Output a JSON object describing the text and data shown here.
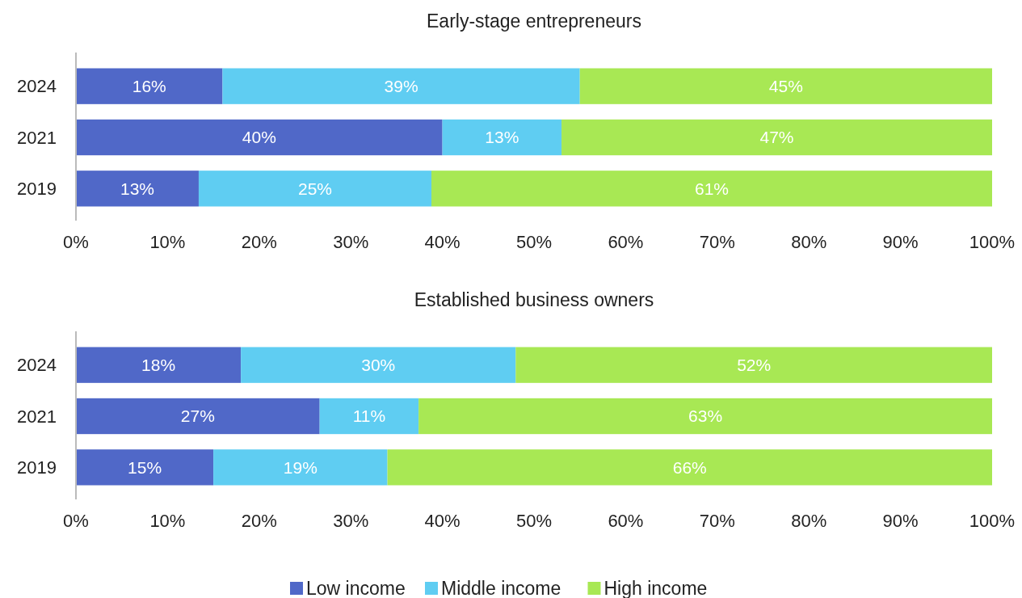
{
  "chart_data": [
    {
      "type": "bar",
      "orientation": "horizontal",
      "stacked": true,
      "title": "Early-stage entrepreneurs",
      "categories": [
        "2024",
        "2021",
        "2019"
      ],
      "series": [
        {
          "color": "#5068c8",
          "values": [
            16,
            40,
            13.4
          ],
          "value_labels": [
            "16%",
            "40%",
            "13%"
          ]
        },
        {
          "color": "#5fcdf2",
          "values": [
            39,
            13,
            25.4
          ],
          "value_labels": [
            "39%",
            "13%",
            "25%"
          ]
        },
        {
          "color": "#a8e854",
          "values": [
            45,
            47,
            61.2
          ],
          "value_labels": [
            "45%",
            "47%",
            "61%"
          ]
        }
      ],
      "xlim": [
        0,
        100
      ],
      "xticks": [
        {
          "value": 0,
          "label": "0%"
        },
        {
          "value": 10,
          "label": "10%"
        },
        {
          "value": 20,
          "label": "20%"
        },
        {
          "value": 30,
          "label": "30%"
        },
        {
          "value": 40,
          "label": "40%"
        },
        {
          "value": 50,
          "label": "50%"
        },
        {
          "value": 60,
          "label": "60%"
        },
        {
          "value": 70,
          "label": "70%"
        },
        {
          "value": 80,
          "label": "80%"
        },
        {
          "value": 90,
          "label": "90%"
        },
        {
          "value": 100,
          "label": "100%"
        }
      ],
      "grid": false
    },
    {
      "type": "bar",
      "orientation": "horizontal",
      "stacked": true,
      "title": "Established business owners",
      "categories": [
        "2024",
        "2021",
        "2019"
      ],
      "series": [
        {
          "name": "Low income",
          "color": "#5068c8",
          "values": [
            18,
            26.6,
            15
          ],
          "value_labels": [
            "18%",
            "27%",
            "15%"
          ]
        },
        {
          "name": "Middle income",
          "color": "#5fcdf2",
          "values": [
            30,
            10.8,
            19
          ],
          "value_labels": [
            "30%",
            "11%",
            "19%"
          ]
        },
        {
          "name": "High income",
          "color": "#a8e854",
          "values": [
            52,
            62.6,
            66
          ],
          "value_labels": [
            "52%",
            "63%",
            "66%"
          ]
        }
      ],
      "xlim": [
        0,
        100
      ],
      "xticks": [
        {
          "value": 0,
          "label": "0%"
        },
        {
          "value": 10,
          "label": "10%"
        },
        {
          "value": 20,
          "label": "20%"
        },
        {
          "value": 30,
          "label": "30%"
        },
        {
          "value": 40,
          "label": "40%"
        },
        {
          "value": 50,
          "label": "50%"
        },
        {
          "value": 60,
          "label": "60%"
        },
        {
          "value": 70,
          "label": "70%"
        },
        {
          "value": 80,
          "label": "80%"
        },
        {
          "value": 90,
          "label": "90%"
        },
        {
          "value": 100,
          "label": "100%"
        }
      ],
      "grid": false,
      "legend": "bottom"
    }
  ]
}
